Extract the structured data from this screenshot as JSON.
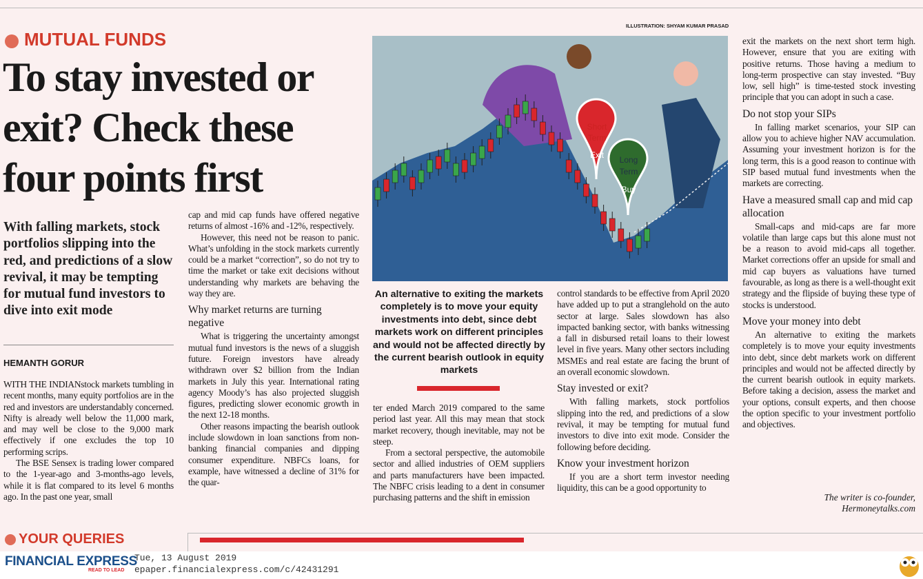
{
  "section_label": "MUTUAL FUNDS",
  "title": "To stay invested or exit? Check these four points first",
  "deck": "With falling markets, stock portfolios slipping into the red, and predictions of a slow revival, it may be tempting for mutual fund investors to dive into exit mode",
  "byline": "HEMANTH GORUR",
  "illustration": {
    "credit": "ILLUSTRATION: SHYAM KUMAR PRASAD",
    "short_pin": [
      "Short",
      "Term",
      "Exit"
    ],
    "long_pin": [
      "Long",
      "Term",
      "Buy"
    ]
  },
  "pull_quote": "An alternative to exiting the markets completely is to move your equity investments into debt, since debt markets work on different principles and would not be affected directly by the current bearish outlook in equity markets",
  "article": {
    "lead_in": "WITH THE INDIAN",
    "columns": [
      [
        {
          "paragraph": "stock markets tumbling in recent months, many equity portfolios are in the red and investors are understandably concerned. Nifty is already well below the 11,000 mark, and may well be close to the 9,000 mark effectively if one excludes the top 10 performing scrips."
        },
        {
          "paragraph": "The BSE Sensex is trading lower compared to the 1-year-ago and 3-months-ago levels, while it is flat compared to its level 6 months ago. In the past one year, small"
        }
      ],
      [
        {
          "paragraph": "cap and mid cap funds have offered negative returns of almost -16% and -12%, respectively."
        },
        {
          "paragraph": "However, this need not be reason to panic. What’s unfolding in the stock markets currently could be a market “correction”, so do not try to time the market or take exit decisions without understanding why markets are behaving the way they are."
        },
        {
          "heading": "Why market returns are turning negative"
        },
        {
          "paragraph": "What is triggering the uncertainty amongst mutual fund investors is the news of a sluggish future. Foreign investors have already withdrawn over $2 billion from the Indian markets in July this year. International rating agency Moody’s has also projected sluggish figures, predicting slower economic growth in the next 12-18 months."
        },
        {
          "paragraph": "Other reasons impacting the bearish outlook include slowdown in loan sanctions from non-banking financial companies and dipping consumer expenditure. NBFCs loans, for example, have witnessed a decline of 31% for the quar-"
        }
      ],
      [
        {
          "paragraph": "ter ended March 2019 compared to the same period last year. All this may mean that stock market recovery, though inevitable, may not be steep."
        },
        {
          "paragraph": "From a sectoral perspective, the automobile sector and allied industries of OEM suppliers and parts manufacturers have been impacted. The NBFC crisis leading to a dent in consumer purchasing patterns and the shift in emission"
        }
      ],
      [
        {
          "paragraph": "control standards to be effective from April 2020 have added up to put a stranglehold on the auto sector at large. Sales slowdown has also impacted banking sector, with banks witnessing a fall in disbursed retail loans to their lowest level in five years. Many other sectors including MSMEs and real estate are facing the brunt of an overall economic slowdown."
        },
        {
          "heading": "Stay invested or exit?"
        },
        {
          "paragraph": "With falling markets, stock portfolios slipping into the red, and predictions of a slow revival, it may be tempting for mutual fund investors to dive into exit mode. Consider the following before deciding."
        },
        {
          "heading": "Know your investment horizon"
        },
        {
          "paragraph": "If you are a short term investor needing liquidity, this can be a good opportunity to"
        }
      ],
      [
        {
          "paragraph": "exit the markets on the next short term high. However, ensure that you are exiting with positive returns. Those having a medium to long-term prospective can stay invested. “Buy low, sell high” is time-tested stock investing principle that you can adopt in such a case."
        },
        {
          "heading": "Do not stop your SIPs"
        },
        {
          "paragraph": "In falling market scenarios, your SIP can allow you to achieve higher NAV accumulation. Assuming your investment horizon is for the long term, this is a good reason to continue with SIP based mutual fund investments when the markets are correcting."
        },
        {
          "heading": "Have a measured small cap and mid cap allocation"
        },
        {
          "paragraph": "Small-caps and mid-caps are far more volatile than large caps but this alone must not be a reason to avoid mid-caps all together. Market corrections offer an upside for small and mid cap buyers as valuations have turned favourable, as long as there is a well-thought exit strategy and the flipside of buying these type of stocks is understood."
        },
        {
          "heading": "Move your money into debt"
        },
        {
          "paragraph": "An alternative to exiting the markets completely is to move your equity investments into debt, since debt markets work on different principles and would not be affected directly by the current bearish outlook in equity markets. Before taking a decision, assess the market and your options, consult experts, and then choose the option specific to your investment portfolio and objectives."
        }
      ]
    ]
  },
  "signoff": [
    "The writer is co-founder,",
    "Hermoneytalks.com"
  ],
  "footer": {
    "next_section": "YOUR QUERIES",
    "brand": "FINANCIAL EXPRESS",
    "tagline": "READ TO LEAD",
    "date": "Tue, 13 August 2019",
    "url": "epaper.financialexpress.com/c/42431291"
  }
}
